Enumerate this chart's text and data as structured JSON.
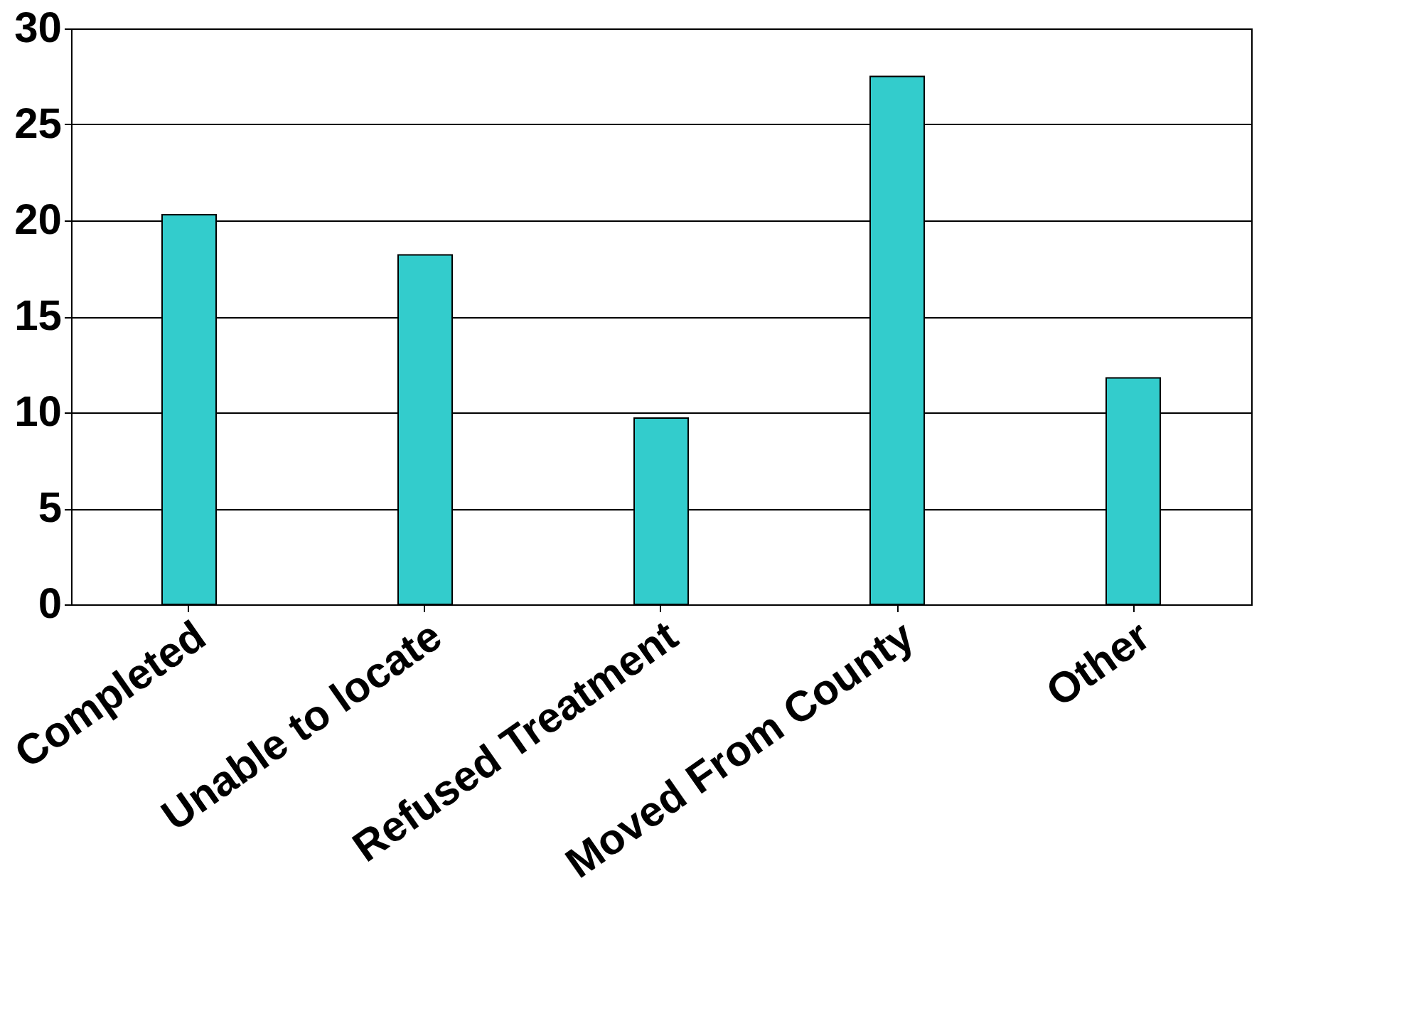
{
  "chart_data": {
    "type": "bar",
    "categories": [
      "Completed",
      "Unable to locate",
      "Refused Treatment",
      "Moved From County",
      "Other"
    ],
    "values": [
      20.3,
      18.2,
      9.7,
      27.5,
      11.8
    ],
    "color": "#33cccc",
    "ylim": [
      0,
      30
    ],
    "yticks": [
      0,
      5,
      10,
      15,
      20,
      25,
      30
    ],
    "grid": "y"
  }
}
